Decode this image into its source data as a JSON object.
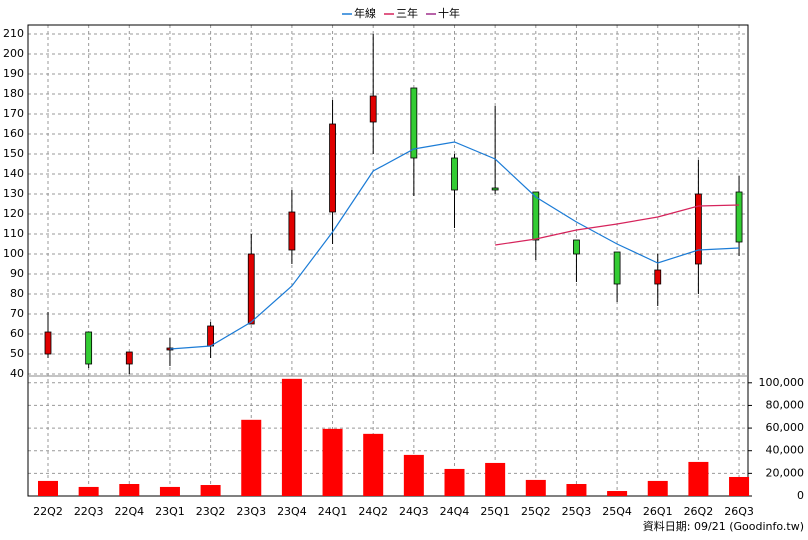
{
  "chart_data": {
    "type": "candlestick",
    "categories": [
      "22Q2",
      "22Q3",
      "22Q4",
      "23Q1",
      "23Q2",
      "23Q3",
      "23Q4",
      "24Q1",
      "24Q2",
      "24Q3",
      "24Q4",
      "25Q1",
      "25Q2",
      "25Q3",
      "25Q4",
      "26Q1",
      "26Q2",
      "26Q3"
    ],
    "open": [
      50,
      61,
      45,
      52,
      54,
      65,
      102,
      121,
      166,
      183,
      148,
      133,
      131,
      107,
      101,
      85,
      95,
      131
    ],
    "high": [
      71,
      61,
      51,
      58,
      66,
      110,
      132,
      177,
      210,
      183,
      150,
      174,
      131,
      107,
      101,
      100,
      147,
      139
    ],
    "low": [
      48,
      43,
      40,
      44,
      48,
      65,
      95,
      105,
      150,
      129,
      113,
      130,
      97,
      86,
      76,
      74,
      80,
      99
    ],
    "close": [
      61,
      45,
      51,
      53,
      64,
      100,
      121,
      165,
      179,
      148,
      132,
      132,
      107,
      100,
      85,
      92,
      130,
      106
    ],
    "up_color": "#e00000",
    "down_color": "#33cc33",
    "series": [
      {
        "name": "年線",
        "color": "#1c7cd6",
        "values": [
          null,
          null,
          null,
          52.5,
          54,
          66,
          84,
          111,
          141.5,
          152.5,
          156,
          147.5,
          128.5,
          116,
          105,
          95.5,
          102,
          103
        ]
      },
      {
        "name": "三年",
        "color": "#d6245c",
        "values": [
          null,
          null,
          null,
          null,
          null,
          null,
          null,
          null,
          null,
          null,
          null,
          104.5,
          107.5,
          112,
          115,
          118.5,
          124,
          124.5
        ]
      },
      {
        "name": "十年",
        "color": "#a0308c",
        "values": [
          null,
          null,
          null,
          null,
          null,
          null,
          null,
          null,
          null,
          null,
          null,
          null,
          null,
          null,
          null,
          null,
          null,
          null
        ]
      }
    ],
    "volume": {
      "color": "#ff0000",
      "values": [
        13300,
        8000,
        10600,
        8000,
        9700,
        67300,
        103500,
        59300,
        54900,
        36300,
        23900,
        29200,
        14200,
        10600,
        4400,
        13300,
        30100,
        16800
      ]
    },
    "ylim": [
      39,
      213
    ],
    "yticks": [
      40,
      50,
      60,
      70,
      80,
      90,
      100,
      110,
      120,
      130,
      140,
      150,
      160,
      170,
      180,
      190,
      200,
      210
    ],
    "y2lim": [
      0,
      106000
    ],
    "y2ticks": [
      0,
      {
        "value": 20000,
        "label": "20,000"
      },
      {
        "value": 40000,
        "label": "40,000"
      },
      {
        "value": 60000,
        "label": "60,000"
      },
      {
        "value": 80000,
        "label": "80,000"
      },
      {
        "value": 100000,
        "label": "100,000"
      }
    ],
    "grid": true,
    "legend": "top",
    "footer": "資料日期: 09/21 (Goodinfo.tw)"
  }
}
